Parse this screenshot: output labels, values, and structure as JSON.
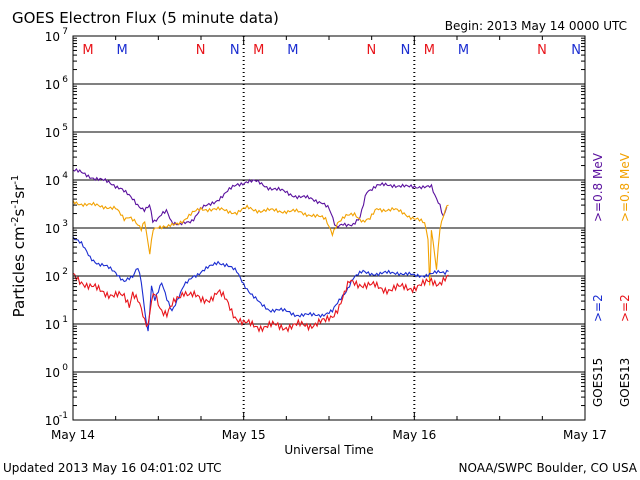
{
  "header": {
    "title": "GOES Electron Flux (5 minute data)",
    "begin": "Begin: 2013 May 14 0000 UTC"
  },
  "footer": {
    "updated": "Updated 2013 May 16 04:01:02 UTC",
    "source": "NOAA/SWPC Boulder, CO USA"
  },
  "colors": {
    "goes15_ge2": "#1b2dd1",
    "goes13_ge2": "#e8141a",
    "goes15_ge08": "#5a119e",
    "goes13_ge08": "#f2a100",
    "midnight": "#e8141a",
    "noon": "#1b2dd1",
    "grid": "#000000"
  },
  "right_legend": {
    "col1_top": ">=0.8 MeV",
    "col1_bottom": ">=2",
    "col1_sat": "GOES15",
    "col2_top": ">=0.8 MeV",
    "col2_bottom": ">=2",
    "col2_sat": "GOES13"
  },
  "chart_data": {
    "type": "line",
    "title": "GOES Electron Flux (5 minute data)",
    "xlabel": "Universal Time",
    "ylabel": "Particles cm^-2 s^-1 sr^-1",
    "ylim_exp": [
      -1,
      7
    ],
    "log_scale": true,
    "xlim_days": [
      0,
      3
    ],
    "x_tick_labels": [
      "May 14",
      "May 15",
      "May 16",
      "May 17"
    ],
    "y_tick_labels": [
      {
        "base": "10",
        "exp": "-1"
      },
      {
        "base": "10",
        "exp": "0"
      },
      {
        "base": "10",
        "exp": "1"
      },
      {
        "base": "10",
        "exp": "2"
      },
      {
        "base": "10",
        "exp": "3"
      },
      {
        "base": "10",
        "exp": "4"
      },
      {
        "base": "10",
        "exp": "5"
      },
      {
        "base": "10",
        "exp": "6"
      },
      {
        "base": "10",
        "exp": "7"
      }
    ],
    "threshold_lines": [
      1000
    ],
    "markers": [
      {
        "label": "M",
        "day": 0.17,
        "color": "#e8141a"
      },
      {
        "label": "M",
        "day": 0.37,
        "color": "#1b2dd1"
      },
      {
        "label": "N",
        "day": 0.83,
        "color": "#e8141a"
      },
      {
        "label": "N",
        "day": 1.03,
        "color": "#1b2dd1"
      },
      {
        "label": "M",
        "day": 1.17,
        "color": "#e8141a"
      },
      {
        "label": "M",
        "day": 1.37,
        "color": "#1b2dd1"
      },
      {
        "label": "N",
        "day": 1.83,
        "color": "#e8141a"
      },
      {
        "label": "N",
        "day": 2.03,
        "color": "#1b2dd1"
      },
      {
        "label": "M",
        "day": 2.17,
        "color": "#e8141a"
      },
      {
        "label": "M",
        "day": 2.37,
        "color": "#1b2dd1"
      },
      {
        "label": "N",
        "day": 2.83,
        "color": "#e8141a"
      },
      {
        "label": "N",
        "day": 3.03,
        "color": "#1b2dd1"
      }
    ],
    "series": [
      {
        "name": "GOES15 >=0.8 MeV",
        "color": "#5a119e",
        "points": [
          [
            0.0,
            16000
          ],
          [
            0.1,
            12000
          ],
          [
            0.2,
            9000
          ],
          [
            0.28,
            7000
          ],
          [
            0.33,
            4500
          ],
          [
            0.38,
            3000
          ],
          [
            0.42,
            2500
          ],
          [
            0.45,
            3000
          ],
          [
            0.47,
            1200
          ],
          [
            0.5,
            1500
          ],
          [
            0.52,
            2000
          ],
          [
            0.55,
            2500
          ],
          [
            0.58,
            1300
          ],
          [
            0.62,
            1100
          ],
          [
            0.7,
            1500
          ],
          [
            0.75,
            2500
          ],
          [
            0.8,
            3000
          ],
          [
            0.85,
            4000
          ],
          [
            0.9,
            5500
          ],
          [
            0.96,
            8000
          ],
          [
            1.02,
            9500
          ],
          [
            1.08,
            9000
          ],
          [
            1.15,
            7000
          ],
          [
            1.25,
            5500
          ],
          [
            1.32,
            4500
          ],
          [
            1.4,
            4000
          ],
          [
            1.46,
            3500
          ],
          [
            1.5,
            2500
          ],
          [
            1.54,
            1000
          ],
          [
            1.58,
            1300
          ],
          [
            1.64,
            1100
          ],
          [
            1.68,
            1500
          ],
          [
            1.72,
            6000
          ],
          [
            1.78,
            7500
          ],
          [
            1.88,
            8000
          ],
          [
            1.96,
            7000
          ],
          [
            2.04,
            7500
          ],
          [
            2.1,
            7000
          ],
          [
            2.12,
            4500
          ],
          [
            2.15,
            3000
          ],
          [
            2.17,
            1800
          ],
          [
            2.19,
            3000
          ]
        ]
      },
      {
        "name": "GOES13 >=0.8 MeV",
        "color": "#f2a100",
        "points": [
          [
            0.0,
            3500
          ],
          [
            0.1,
            3000
          ],
          [
            0.2,
            2800
          ],
          [
            0.25,
            2500
          ],
          [
            0.3,
            1500
          ],
          [
            0.33,
            1800
          ],
          [
            0.36,
            1500
          ],
          [
            0.4,
            900
          ],
          [
            0.42,
            1300
          ],
          [
            0.44,
            450
          ],
          [
            0.45,
            300
          ],
          [
            0.47,
            1000
          ],
          [
            0.5,
            1100
          ],
          [
            0.55,
            1000
          ],
          [
            0.6,
            1200
          ],
          [
            0.65,
            1500
          ],
          [
            0.7,
            2000
          ],
          [
            0.75,
            2500
          ],
          [
            0.8,
            2500
          ],
          [
            0.9,
            2300
          ],
          [
            0.96,
            2100
          ],
          [
            1.02,
            2600
          ],
          [
            1.1,
            2300
          ],
          [
            1.2,
            2300
          ],
          [
            1.3,
            2200
          ],
          [
            1.36,
            2000
          ],
          [
            1.4,
            1900
          ],
          [
            1.48,
            1500
          ],
          [
            1.52,
            800
          ],
          [
            1.55,
            1300
          ],
          [
            1.6,
            1700
          ],
          [
            1.65,
            2000
          ],
          [
            1.7,
            1400
          ],
          [
            1.74,
            1500
          ],
          [
            1.78,
            2500
          ],
          [
            1.88,
            2400
          ],
          [
            1.94,
            2000
          ],
          [
            2.02,
            1500
          ],
          [
            2.06,
            1200
          ],
          [
            2.08,
            600
          ],
          [
            2.09,
            60
          ],
          [
            2.1,
            1000
          ],
          [
            2.13,
            150
          ],
          [
            2.15,
            1000
          ],
          [
            2.18,
            2200
          ],
          [
            2.2,
            3000
          ]
        ]
      },
      {
        "name": "GOES15 >=2 MeV",
        "color": "#1b2dd1",
        "points": [
          [
            0.0,
            650
          ],
          [
            0.05,
            450
          ],
          [
            0.1,
            250
          ],
          [
            0.15,
            180
          ],
          [
            0.2,
            150
          ],
          [
            0.25,
            120
          ],
          [
            0.3,
            80
          ],
          [
            0.35,
            90
          ],
          [
            0.38,
            150
          ],
          [
            0.4,
            80
          ],
          [
            0.42,
            20
          ],
          [
            0.44,
            7
          ],
          [
            0.46,
            60
          ],
          [
            0.48,
            30
          ],
          [
            0.52,
            70
          ],
          [
            0.55,
            35
          ],
          [
            0.58,
            20
          ],
          [
            0.62,
            35
          ],
          [
            0.65,
            60
          ],
          [
            0.7,
            100
          ],
          [
            0.75,
            120
          ],
          [
            0.8,
            150
          ],
          [
            0.85,
            200
          ],
          [
            0.9,
            170
          ],
          [
            0.96,
            120
          ],
          [
            1.0,
            70
          ],
          [
            1.05,
            40
          ],
          [
            1.1,
            25
          ],
          [
            1.15,
            20
          ],
          [
            1.2,
            20
          ],
          [
            1.3,
            16
          ],
          [
            1.4,
            15
          ],
          [
            1.46,
            16
          ],
          [
            1.52,
            18
          ],
          [
            1.56,
            30
          ],
          [
            1.6,
            50
          ],
          [
            1.64,
            90
          ],
          [
            1.7,
            120
          ],
          [
            1.8,
            110
          ],
          [
            1.9,
            120
          ],
          [
            2.0,
            100
          ],
          [
            2.1,
            110
          ],
          [
            2.18,
            120
          ],
          [
            2.2,
            140
          ]
        ]
      },
      {
        "name": "GOES13 >=2 MeV",
        "color": "#e8141a",
        "points": [
          [
            0.0,
            100
          ],
          [
            0.05,
            80
          ],
          [
            0.1,
            60
          ],
          [
            0.15,
            50
          ],
          [
            0.2,
            45
          ],
          [
            0.25,
            40
          ],
          [
            0.3,
            35
          ],
          [
            0.33,
            25
          ],
          [
            0.35,
            50
          ],
          [
            0.38,
            35
          ],
          [
            0.4,
            20
          ],
          [
            0.42,
            10
          ],
          [
            0.44,
            8
          ],
          [
            0.46,
            30
          ],
          [
            0.48,
            50
          ],
          [
            0.5,
            30
          ],
          [
            0.52,
            20
          ],
          [
            0.55,
            15
          ],
          [
            0.6,
            30
          ],
          [
            0.65,
            50
          ],
          [
            0.7,
            40
          ],
          [
            0.75,
            30
          ],
          [
            0.8,
            35
          ],
          [
            0.85,
            45
          ],
          [
            0.9,
            30
          ],
          [
            0.95,
            15
          ],
          [
            1.0,
            10
          ],
          [
            1.1,
            9
          ],
          [
            1.2,
            9
          ],
          [
            1.3,
            9
          ],
          [
            1.4,
            10
          ],
          [
            1.48,
            11
          ],
          [
            1.52,
            15
          ],
          [
            1.56,
            25
          ],
          [
            1.62,
            70
          ],
          [
            1.7,
            70
          ],
          [
            1.8,
            55
          ],
          [
            1.9,
            55
          ],
          [
            2.0,
            60
          ],
          [
            2.06,
            65
          ],
          [
            2.1,
            80
          ],
          [
            2.14,
            75
          ],
          [
            2.18,
            85
          ],
          [
            2.2,
            90
          ]
        ]
      }
    ]
  }
}
